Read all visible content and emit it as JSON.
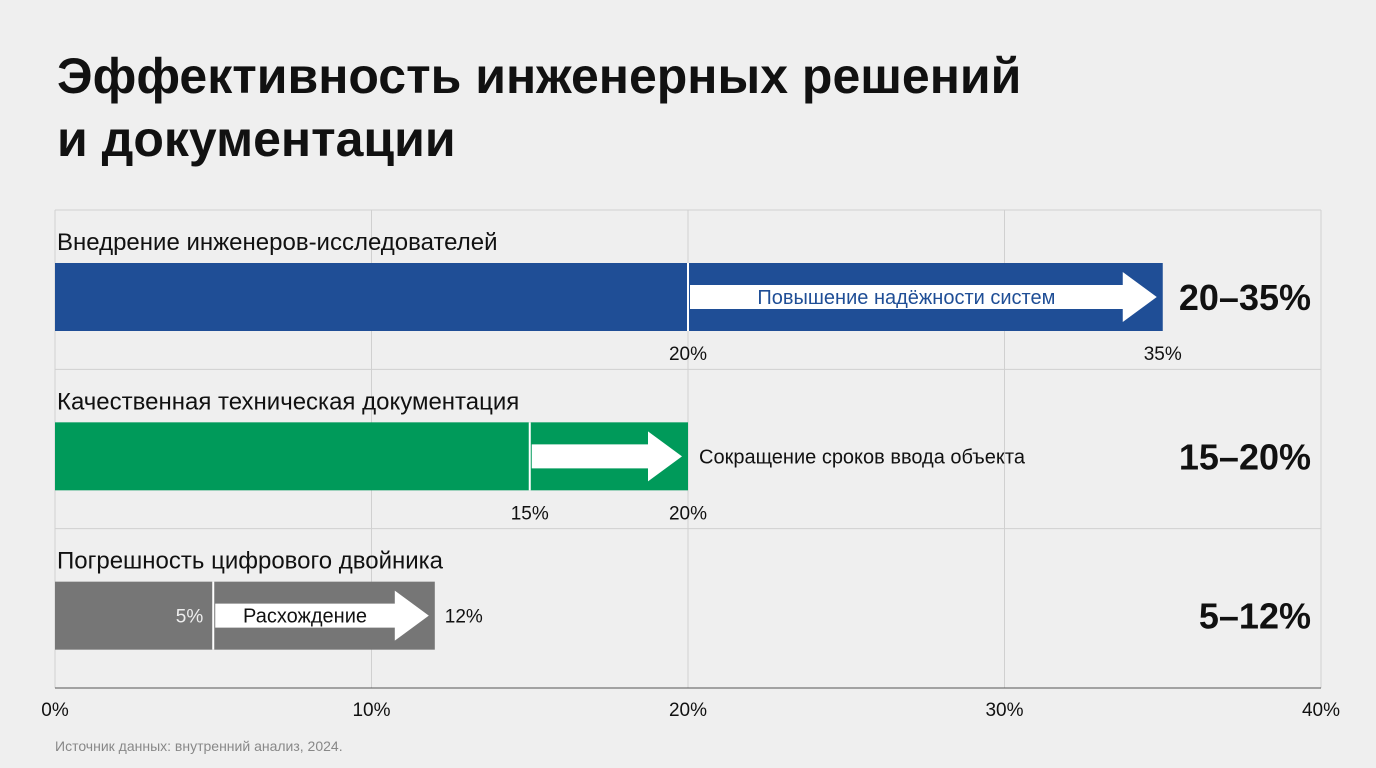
{
  "chart_data": {
    "type": "range_bar",
    "title": [
      "Эффективность инженерных решений",
      "и документации"
    ],
    "xlim": [
      0,
      40
    ],
    "xticks": [
      {
        "value": 0,
        "label": "0%"
      },
      {
        "value": 10,
        "label": "10%"
      },
      {
        "value": 20,
        "label": "20%"
      },
      {
        "value": 30,
        "label": "30%"
      },
      {
        "value": 40,
        "label": "40%"
      }
    ],
    "grid": true,
    "rows": [
      {
        "name": "Внедрение инженеров-исследователей",
        "color": "#1f4e96",
        "low": 20,
        "high": 35,
        "low_label": "20%",
        "high_label": "35%",
        "arrow_label": "Повышение надёжности систем",
        "range_label": "20–35%"
      },
      {
        "name": "Качественная техническая документация",
        "color": "#009a5a",
        "low": 15,
        "high": 20,
        "low_label": "15%",
        "high_label": "20%",
        "arrow_label": "Сокращение сроков ввода объекта",
        "range_label": "15–20%"
      },
      {
        "name": "Погрешность цифрового двойника",
        "color": "#767676",
        "low": 5,
        "high": 12,
        "low_label": "5%",
        "high_label": "12%",
        "arrow_label": "Расхождение",
        "range_label": "5–12%"
      }
    ],
    "source": "Источник данных: внутренний анализ, 2024."
  }
}
